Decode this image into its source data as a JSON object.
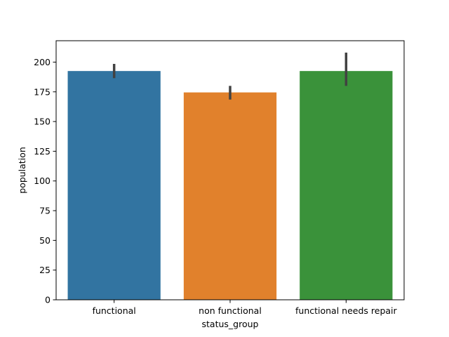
{
  "chart_data": {
    "type": "bar",
    "categories": [
      "functional",
      "non functional",
      "functional needs repair"
    ],
    "values": [
      192.5,
      174.5,
      192.5
    ],
    "error_bars": [
      [
        186.5,
        198.5
      ],
      [
        168.5,
        180.0
      ],
      [
        180.0,
        208.0
      ]
    ],
    "colors": [
      "#3274a1",
      "#e1812c",
      "#3a923a"
    ],
    "error_color": "#424242",
    "xlabel": "status_group",
    "ylabel": "population",
    "ylim": [
      0,
      218
    ],
    "yticks": [
      0,
      25,
      50,
      75,
      100,
      125,
      150,
      175,
      200
    ],
    "ytick_labels": [
      "0",
      "25",
      "50",
      "75",
      "100",
      "125",
      "150",
      "175",
      "200"
    ],
    "grid": false,
    "legend": "none"
  }
}
